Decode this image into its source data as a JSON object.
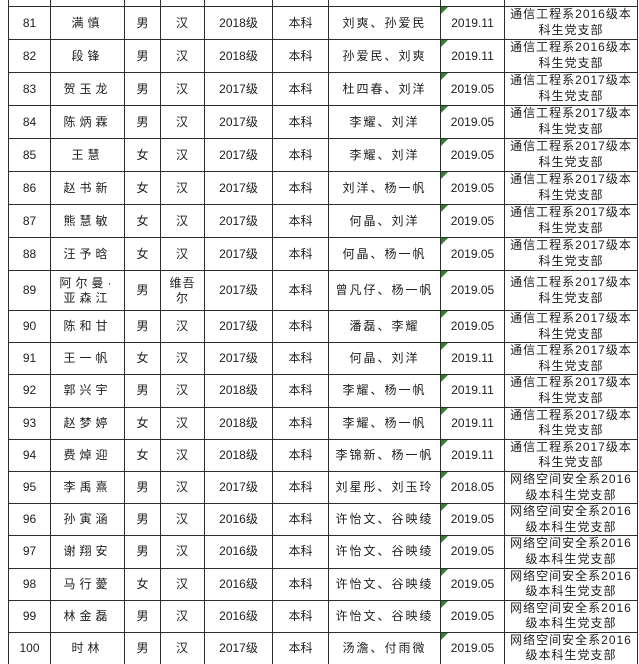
{
  "colors": {
    "error_indicator_green": "#338033",
    "grid_border": "#2d2d2d",
    "text": "#1d1d1d",
    "background": "#ffffff"
  },
  "table": {
    "rows": [
      {
        "no": "81",
        "name": "满慎",
        "gender": "男",
        "ethnicity": "汉",
        "grade": "2018级",
        "degree": "本科",
        "introducers": "刘爽、孙爱民",
        "date": "2019.11",
        "branch": "通信工程系2016级本\n科生党支部"
      },
      {
        "no": "82",
        "name": "段锋",
        "gender": "男",
        "ethnicity": "汉",
        "grade": "2018级",
        "degree": "本科",
        "introducers": "孙爱民、刘爽",
        "date": "2019.11",
        "branch": "通信工程系2016级本\n科生党支部"
      },
      {
        "no": "83",
        "name": "贺玉龙",
        "gender": "男",
        "ethnicity": "汉",
        "grade": "2017级",
        "degree": "本科",
        "introducers": "杜四春、刘洋",
        "date": "2019.05",
        "branch": "通信工程系2017级本\n科生党支部"
      },
      {
        "no": "84",
        "name": "陈炳霖",
        "gender": "男",
        "ethnicity": "汉",
        "grade": "2017级",
        "degree": "本科",
        "introducers": "李耀、刘洋",
        "date": "2019.05",
        "branch": "通信工程系2017级本\n科生党支部"
      },
      {
        "no": "85",
        "name": "王慧",
        "gender": "女",
        "ethnicity": "汉",
        "grade": "2017级",
        "degree": "本科",
        "introducers": "李耀、刘洋",
        "date": "2019.05",
        "branch": "通信工程系2017级本\n科生党支部"
      },
      {
        "no": "86",
        "name": "赵书新",
        "gender": "女",
        "ethnicity": "汉",
        "grade": "2017级",
        "degree": "本科",
        "introducers": "刘洋、杨一帆",
        "date": "2019.05",
        "branch": "通信工程系2017级本\n科生党支部"
      },
      {
        "no": "87",
        "name": "熊慧敏",
        "gender": "女",
        "ethnicity": "汉",
        "grade": "2017级",
        "degree": "本科",
        "introducers": "何晶、刘洋",
        "date": "2019.05",
        "branch": "通信工程系2017级本\n科生党支部"
      },
      {
        "no": "88",
        "name": "汪予晗",
        "gender": "女",
        "ethnicity": "汉",
        "grade": "2017级",
        "degree": "本科",
        "introducers": "何晶、杨一帆",
        "date": "2019.05",
        "branch": "通信工程系2017级本\n科生党支部"
      },
      {
        "no": "89",
        "name": "阿尔曼·\n亚森江",
        "gender": "男",
        "ethnicity": "维吾\n尔",
        "grade": "2017级",
        "degree": "本科",
        "introducers": "曾凡仔、杨一帆",
        "date": "2019.05",
        "branch": "通信工程系2017级本\n科生党支部"
      },
      {
        "no": "90",
        "name": "陈和甘",
        "gender": "男",
        "ethnicity": "汉",
        "grade": "2017级",
        "degree": "本科",
        "introducers": "潘磊、李耀",
        "date": "2019.05",
        "branch": "通信工程系2017级本\n科生党支部"
      },
      {
        "no": "91",
        "name": "王一帆",
        "gender": "女",
        "ethnicity": "汉",
        "grade": "2017级",
        "degree": "本科",
        "introducers": "何晶、刘洋",
        "date": "2019.11",
        "branch": "通信工程系2017级本\n科生党支部"
      },
      {
        "no": "92",
        "name": "郭兴宇",
        "gender": "男",
        "ethnicity": "汉",
        "grade": "2018级",
        "degree": "本科",
        "introducers": "李耀、杨一帆",
        "date": "2019.11",
        "branch": "通信工程系2017级本\n科生党支部"
      },
      {
        "no": "93",
        "name": "赵梦婷",
        "gender": "女",
        "ethnicity": "汉",
        "grade": "2018级",
        "degree": "本科",
        "introducers": "李耀、杨一帆",
        "date": "2019.11",
        "branch": "通信工程系2017级本\n科生党支部"
      },
      {
        "no": "94",
        "name": "费焯迎",
        "gender": "女",
        "ethnicity": "汉",
        "grade": "2018级",
        "degree": "本科",
        "introducers": "李锦新、杨一帆",
        "date": "2019.11",
        "branch": "通信工程系2017级本\n科生党支部"
      },
      {
        "no": "95",
        "name": "李禹熹",
        "gender": "男",
        "ethnicity": "汉",
        "grade": "2017级",
        "degree": "本科",
        "introducers": "刘星彤、刘玉玲",
        "date": "2018.05",
        "branch": "网络空间安全系2016\n级本科生党支部"
      },
      {
        "no": "96",
        "name": "孙寅涵",
        "gender": "男",
        "ethnicity": "汉",
        "grade": "2016级",
        "degree": "本科",
        "introducers": "许怡文、谷映绫",
        "date": "2019.05",
        "branch": "网络空间安全系2016\n级本科生党支部"
      },
      {
        "no": "97",
        "name": "谢翔安",
        "gender": "男",
        "ethnicity": "汉",
        "grade": "2016级",
        "degree": "本科",
        "introducers": "许怡文、谷映绫",
        "date": "2019.05",
        "branch": "网络空间安全系2016\n级本科生党支部"
      },
      {
        "no": "98",
        "name": "马行薆",
        "gender": "女",
        "ethnicity": "汉",
        "grade": "2016级",
        "degree": "本科",
        "introducers": "许怡文、谷映绫",
        "date": "2019.05",
        "branch": "网络空间安全系2016\n级本科生党支部"
      },
      {
        "no": "99",
        "name": "林金磊",
        "gender": "男",
        "ethnicity": "汉",
        "grade": "2016级",
        "degree": "本科",
        "introducers": "许怡文、谷映绫",
        "date": "2019.05",
        "branch": "网络空间安全系2016\n级本科生党支部"
      },
      {
        "no": "100",
        "name": "时林",
        "gender": "男",
        "ethnicity": "汉",
        "grade": "2017级",
        "degree": "本科",
        "introducers": "汤澹、付雨微",
        "date": "2019.05",
        "branch": "网络空间安全系2016\n级本科生党支部"
      }
    ]
  }
}
